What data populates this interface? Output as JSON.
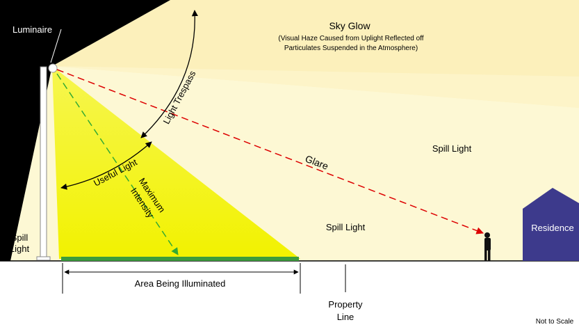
{
  "labels": {
    "luminaire": "Luminaire",
    "sky_glow": {
      "title": "Sky Glow",
      "description": [
        "(Visual Haze Caused from Uplight Reflected off",
        "Particulates Suspended in the Atmosphere)"
      ]
    },
    "light_trespass": "Light Trespass",
    "useful_light": "Useful Light",
    "maximum_intensity": [
      "Maximum",
      "Intensity"
    ],
    "glare": "Glare",
    "spill_light_right": "Spill Light",
    "spill_light_center": "Spill Light",
    "spill_light_left": [
      "Spill",
      "Light"
    ],
    "residence": "Residence",
    "area_being_illuminated": "Area Being Illuminated",
    "property_line": [
      "Property",
      "Line"
    ],
    "note": "Not to Scale"
  }
}
